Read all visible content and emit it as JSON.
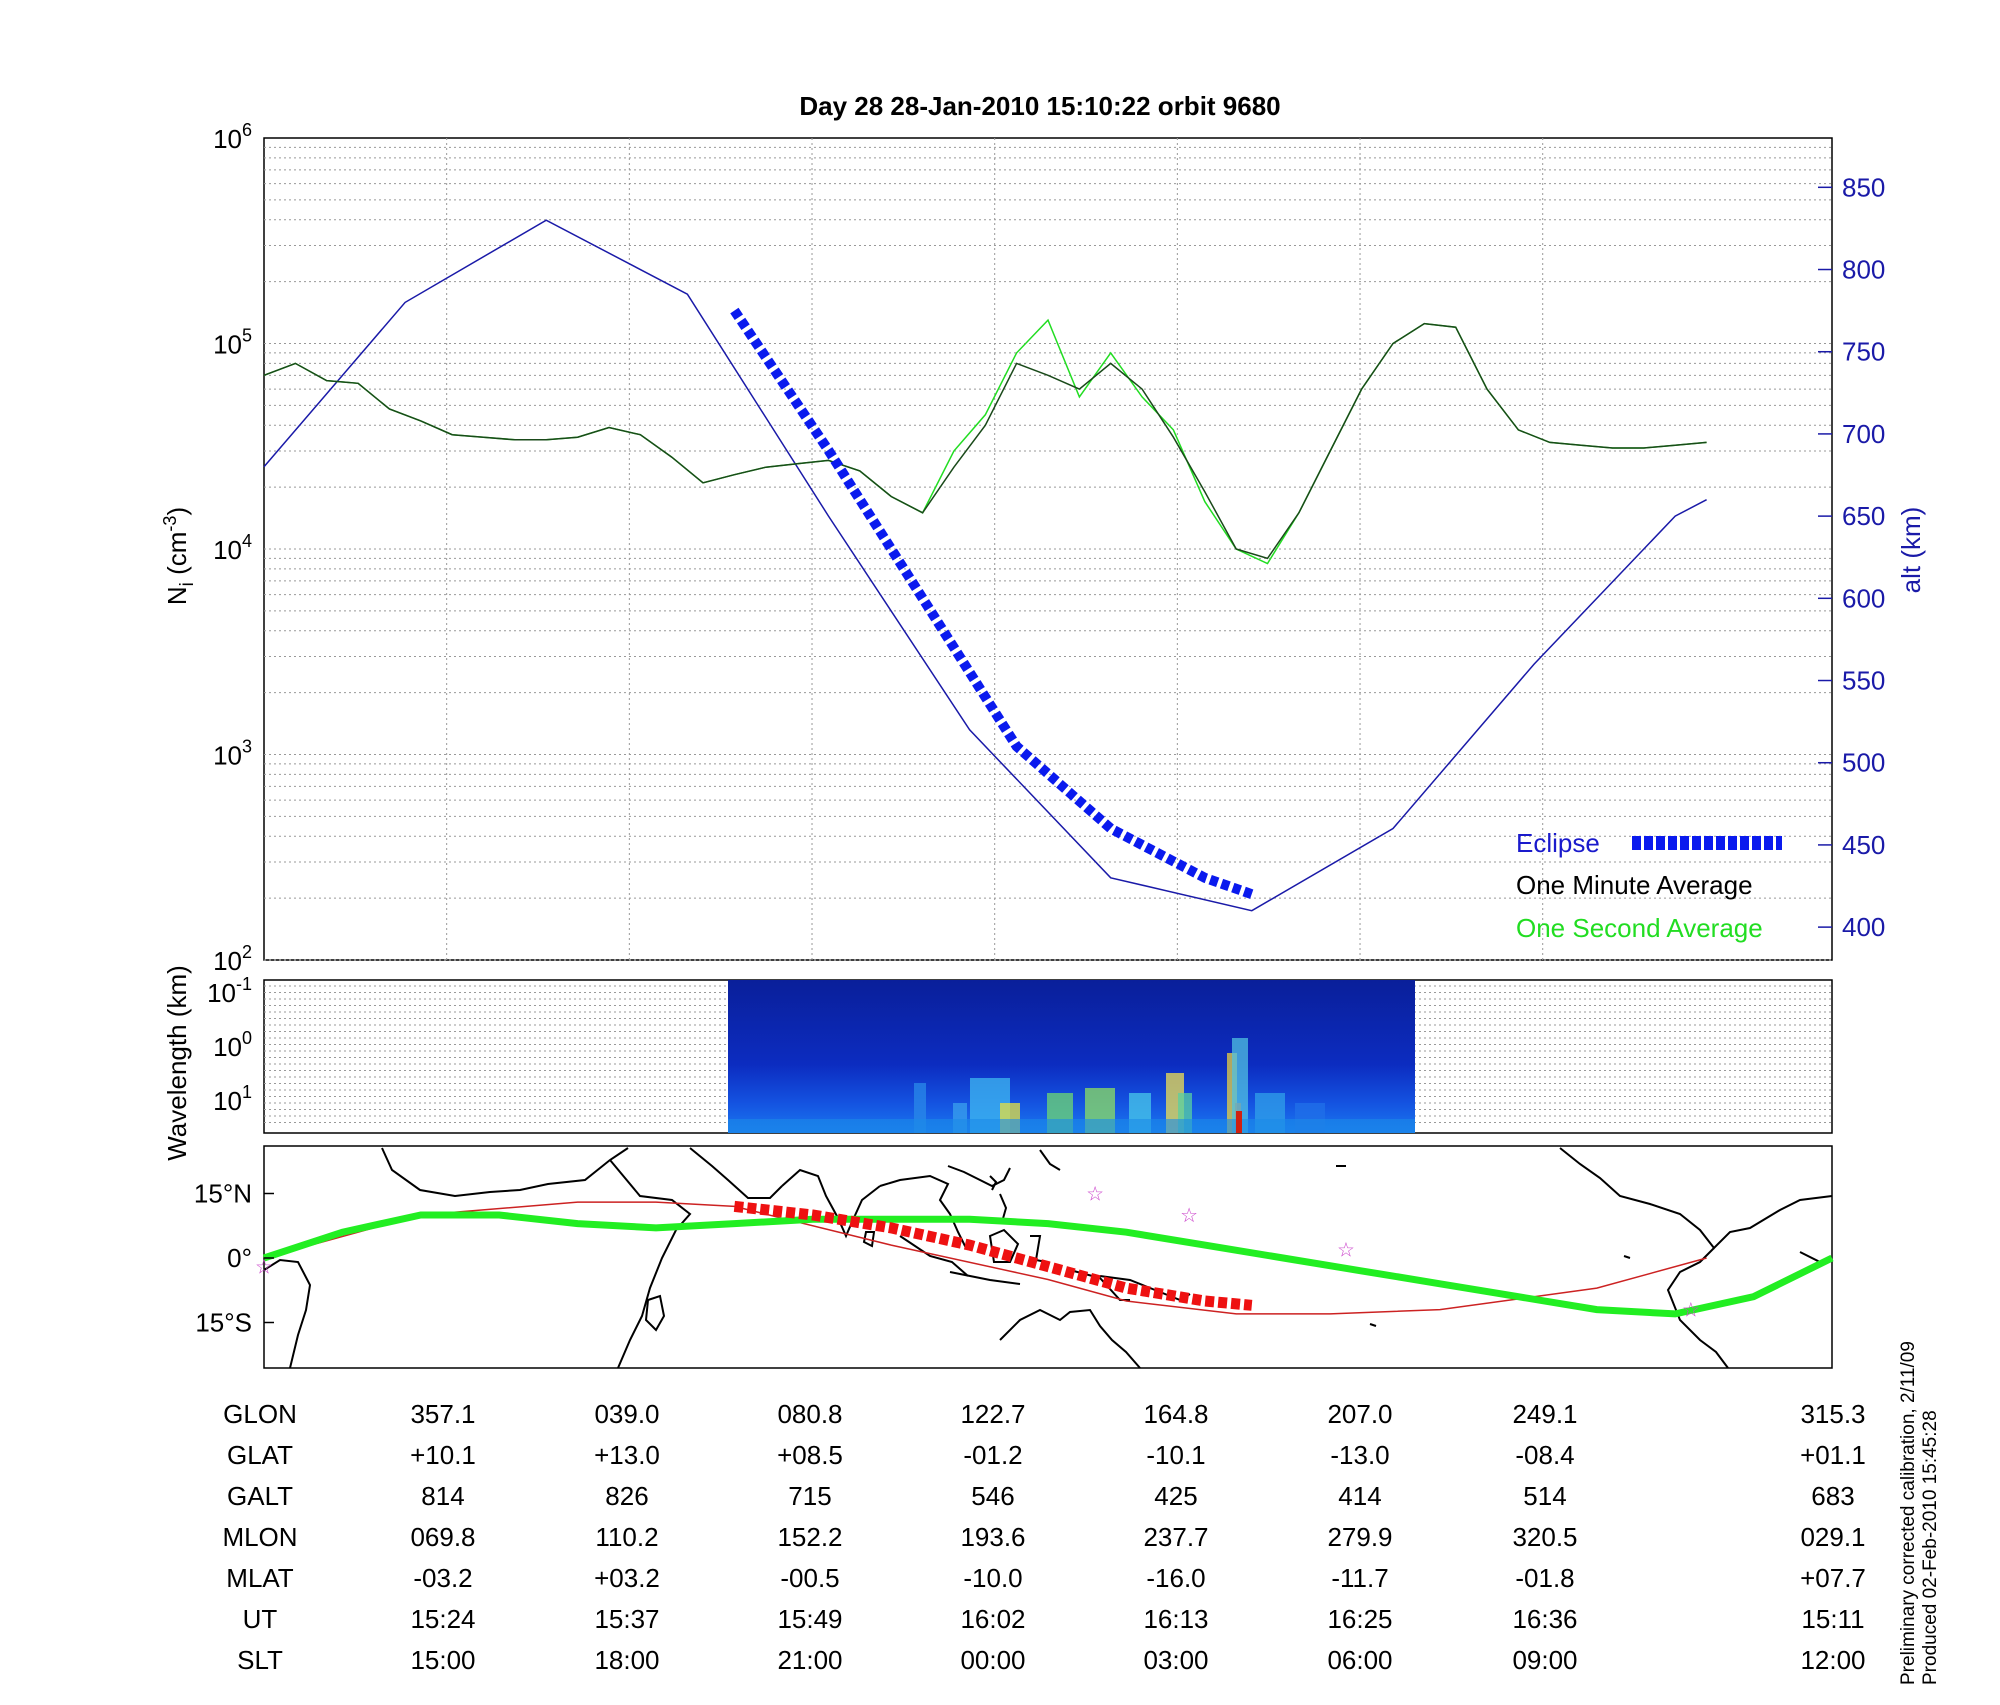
{
  "title": "Day 28  28-Jan-2010 15:10:22   orbit 9680",
  "colors": {
    "altitude": "#1a1aa8",
    "eclipse": "#0a1aee",
    "minute_avg": "#1a4a1a",
    "second_avg": "#22dd22",
    "track": "#22ee22",
    "track_thin": "#cc2222",
    "eclipse_track": "#ee1111",
    "stars": "#cc44cc"
  },
  "chart_data": [
    {
      "type": "line",
      "panel": "ion-density",
      "ylabel_main": "N",
      "ylabel_sub": "i",
      "ylabel_unit": " (cm",
      "ylabel_exp": "-3",
      "ylabel_close": ")",
      "yscale": "log",
      "ylim": [
        100,
        1000000
      ],
      "ytick_base": "10",
      "ytick_exps": [
        "2",
        "3",
        "4",
        "5",
        "6"
      ],
      "y2label": "alt (km)",
      "y2lim": [
        380,
        880
      ],
      "y2ticks": [
        "400",
        "450",
        "500",
        "550",
        "600",
        "650",
        "700",
        "750",
        "800",
        "850"
      ],
      "xlim": [
        0,
        1
      ],
      "grid": true,
      "legend_position": "bottom-right",
      "series": [
        {
          "name": "One Minute Average",
          "axis": "left",
          "x": [
            0.0,
            0.02,
            0.04,
            0.06,
            0.08,
            0.1,
            0.12,
            0.14,
            0.16,
            0.18,
            0.2,
            0.22,
            0.24,
            0.26,
            0.28,
            0.3,
            0.32,
            0.34,
            0.36,
            0.38,
            0.4,
            0.42,
            0.44,
            0.46,
            0.48,
            0.5,
            0.52,
            0.54,
            0.56,
            0.58,
            0.6,
            0.62,
            0.64,
            0.66,
            0.68,
            0.7,
            0.72,
            0.74,
            0.76,
            0.78,
            0.8,
            0.82,
            0.84,
            0.86,
            0.88,
            0.9,
            0.92
          ],
          "y": [
            70000,
            80000,
            66000,
            64000,
            48000,
            42000,
            36000,
            35000,
            34000,
            34000,
            35000,
            39000,
            36000,
            28000,
            21000,
            23000,
            25000,
            26000,
            27000,
            24000,
            18000,
            15000,
            25000,
            40000,
            80000,
            70000,
            60000,
            80000,
            60000,
            35000,
            19000,
            10000,
            9000,
            15000,
            30000,
            60000,
            100000,
            125000,
            120000,
            60000,
            38000,
            33000,
            32000,
            31000,
            31000,
            32000,
            33000
          ]
        },
        {
          "name": "One Second Average",
          "axis": "left",
          "x": [
            0.0,
            0.02,
            0.04,
            0.06,
            0.08,
            0.1,
            0.12,
            0.14,
            0.16,
            0.18,
            0.2,
            0.22,
            0.24,
            0.26,
            0.28,
            0.3,
            0.32,
            0.34,
            0.36,
            0.38,
            0.4,
            0.42,
            0.44,
            0.46,
            0.48,
            0.5,
            0.52,
            0.54,
            0.56,
            0.58,
            0.6,
            0.62,
            0.64,
            0.66,
            0.68,
            0.7,
            0.72,
            0.74,
            0.76,
            0.78,
            0.8,
            0.82,
            0.84,
            0.86,
            0.88,
            0.9,
            0.92
          ],
          "y": [
            70000,
            80000,
            66000,
            64000,
            48000,
            42000,
            36000,
            35000,
            34000,
            34000,
            35000,
            39000,
            36000,
            28000,
            21000,
            23000,
            25000,
            26000,
            27000,
            24000,
            18000,
            15000,
            30000,
            45000,
            90000,
            130000,
            55000,
            90000,
            55000,
            38000,
            17000,
            10000,
            8500,
            15000,
            30000,
            60000,
            100000,
            125000,
            120000,
            60000,
            38000,
            33000,
            32000,
            31000,
            31000,
            32000,
            33000
          ]
        },
        {
          "name": "altitude",
          "axis": "right",
          "x": [
            0.0,
            0.09,
            0.18,
            0.27,
            0.36,
            0.45,
            0.54,
            0.63,
            0.72,
            0.81,
            0.9,
            0.92
          ],
          "y": [
            680,
            780,
            830,
            785,
            650,
            520,
            430,
            410,
            460,
            560,
            650,
            660
          ]
        },
        {
          "name": "Eclipse",
          "axis": "right",
          "x": [
            0.3,
            0.36,
            0.42,
            0.48,
            0.54,
            0.6,
            0.63
          ],
          "y": [
            775,
            690,
            600,
            510,
            460,
            430,
            420
          ]
        }
      ]
    },
    {
      "type": "heatmap",
      "panel": "spectrogram",
      "ylabel": "Wavelength (km)",
      "ytick_base": "10",
      "ytick_exps": [
        "-1",
        "0",
        "1"
      ],
      "xrange": [
        0.3,
        0.74
      ]
    },
    {
      "type": "scatter",
      "panel": "map",
      "yticks": [
        "15°N",
        "0°",
        "15°S"
      ],
      "track": {
        "x": [
          0.0,
          0.05,
          0.1,
          0.15,
          0.2,
          0.25,
          0.3,
          0.35,
          0.4,
          0.45,
          0.5,
          0.55,
          0.6,
          0.65,
          0.7,
          0.75,
          0.8,
          0.85,
          0.9,
          0.95,
          1.0
        ],
        "lat": [
          0,
          6,
          10,
          10,
          8,
          7,
          8,
          9,
          9,
          9,
          8,
          6,
          3,
          0,
          -3,
          -6,
          -9,
          -12,
          -13,
          -9,
          0
        ]
      },
      "orbit_path": {
        "x": [
          0.0,
          0.1,
          0.2,
          0.25,
          0.3,
          0.4,
          0.5,
          0.55,
          0.62,
          0.68,
          0.75,
          0.85,
          0.92
        ],
        "lat": [
          0,
          10,
          13,
          13,
          12,
          3,
          -5,
          -10,
          -13,
          -13,
          -12,
          -7,
          0
        ]
      },
      "eclipse_track": {
        "x": [
          0.3,
          0.35,
          0.4,
          0.45,
          0.5,
          0.55,
          0.6,
          0.63
        ],
        "lat": [
          12,
          10,
          7,
          3,
          -2,
          -7,
          -10,
          -11
        ]
      },
      "stars": {
        "x": [
          0.0,
          0.53,
          0.59,
          0.69,
          0.91
        ],
        "lat": [
          -2,
          15,
          10,
          2,
          -12
        ]
      }
    }
  ],
  "table": {
    "labels": [
      "GLON",
      "GLAT",
      "GALT",
      "MLON",
      "MLAT",
      "UT",
      "SLT"
    ],
    "columns": [
      [
        "357.1",
        "+10.1",
        "814",
        "069.8",
        "-03.2",
        "15:24",
        "15:00"
      ],
      [
        "039.0",
        "+13.0",
        "826",
        "110.2",
        "+03.2",
        "15:37",
        "18:00"
      ],
      [
        "080.8",
        "+08.5",
        "715",
        "152.2",
        "-00.5",
        "15:49",
        "21:00"
      ],
      [
        "122.7",
        "-01.2",
        "546",
        "193.6",
        "-10.0",
        "16:02",
        "00:00"
      ],
      [
        "164.8",
        "-10.1",
        "425",
        "237.7",
        "-16.0",
        "16:13",
        "03:00"
      ],
      [
        "207.0",
        "-13.0",
        "414",
        "279.9",
        "-11.7",
        "16:25",
        "06:00"
      ],
      [
        "249.1",
        "-08.4",
        "514",
        "320.5",
        "-01.8",
        "16:36",
        "09:00"
      ],
      [
        "315.3",
        "+01.1",
        "683",
        "029.1",
        "+07.7",
        "15:11",
        "12:00"
      ]
    ]
  },
  "legend": {
    "eclipse": "Eclipse",
    "minute": "One Minute Average",
    "second": "One Second Average"
  },
  "footer": {
    "line1": "Preliminary corrected calibration, 2/11/09",
    "line2": "Produced 02-Feb-2010 15:45:28"
  }
}
